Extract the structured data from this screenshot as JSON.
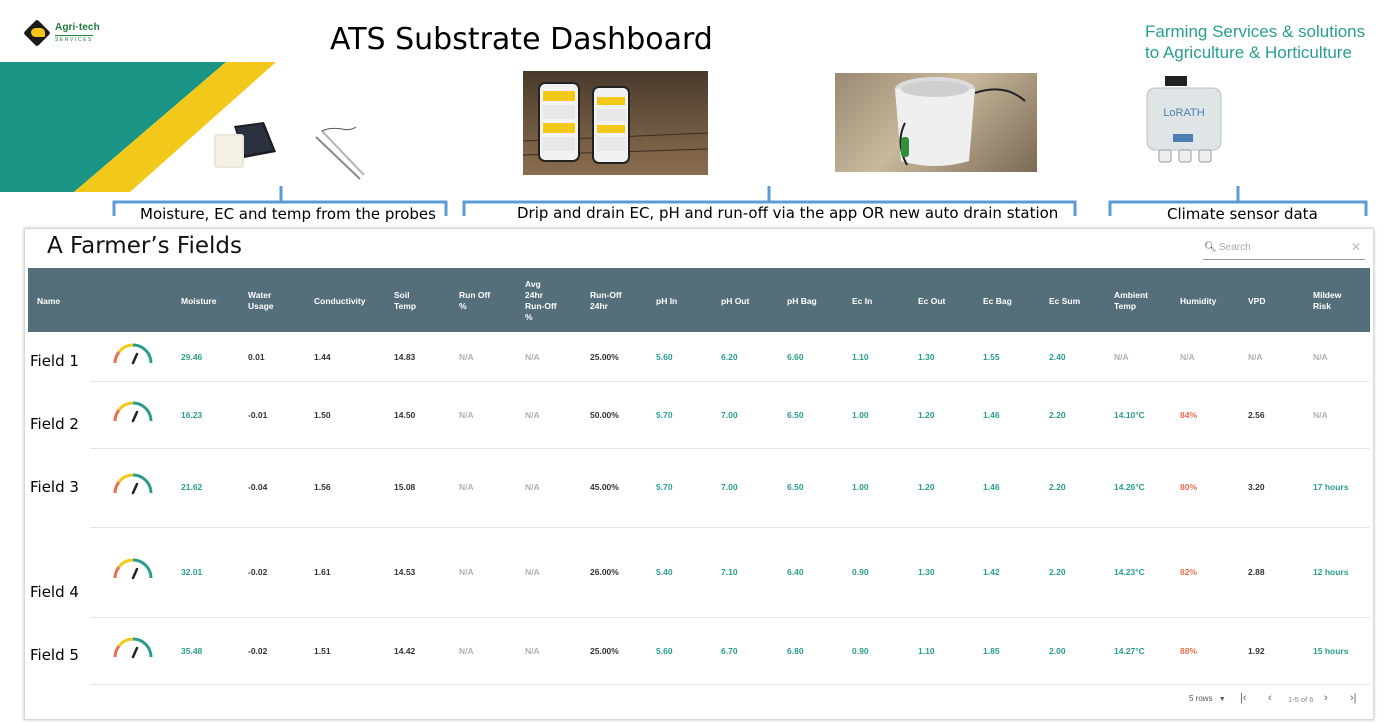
{
  "logo": {
    "name": "Agri·tech",
    "sub": "SERVICES"
  },
  "title": "ATS Substrate Dashboard",
  "tagline": [
    "Farming Services & solutions",
    "to Agriculture & Horticulture"
  ],
  "device_label": "LoRATH",
  "brackets": [
    {
      "label": "Moisture, EC and temp from the probes"
    },
    {
      "label": "Drip and drain EC, pH and run-off via the app OR new auto drain station"
    },
    {
      "label": "Climate sensor data"
    }
  ],
  "table_title": "A Farmer’s Fields",
  "search": {
    "placeholder": "Search",
    "clear_icon": "close-icon"
  },
  "columns": [
    [
      "Name"
    ],
    [
      "Moisture"
    ],
    [
      "Water",
      "Usage"
    ],
    [
      "Conductivity"
    ],
    [
      "Soil",
      "Temp"
    ],
    [
      "Run Off",
      "%"
    ],
    [
      "Avg",
      "24hr",
      "Run-Off",
      "%"
    ],
    [
      "Run-Off",
      "24hr"
    ],
    [
      "pH In"
    ],
    [
      "pH Out"
    ],
    [
      "pH Bag"
    ],
    [
      "Ec In"
    ],
    [
      "Ec Out"
    ],
    [
      "Ec Bag"
    ],
    [
      "Ec Sum"
    ],
    [
      "Ambient",
      "Temp"
    ],
    [
      "Humidity"
    ],
    [
      "VPD"
    ],
    [
      "Mildew",
      "Risk"
    ]
  ],
  "rows": [
    {
      "name": "Field 1",
      "values": [
        "29.46",
        "0.01",
        "1.44",
        "14.83",
        "N/A",
        "N/A",
        "25.00%",
        "5.60",
        "6.20",
        "6.60",
        "1.10",
        "1.30",
        "1.55",
        "2.40",
        "N/A",
        "N/A",
        "N/A",
        "N/A"
      ]
    },
    {
      "name": "Field 2",
      "values": [
        "16.23",
        "-0.01",
        "1.50",
        "14.50",
        "N/A",
        "N/A",
        "50.00%",
        "5.70",
        "7.00",
        "6.50",
        "1.00",
        "1.20",
        "1.46",
        "2.20",
        "14.10°C",
        "84%",
        "2.56",
        "N/A"
      ]
    },
    {
      "name": "Field 3",
      "values": [
        "21.62",
        "-0.04",
        "1.56",
        "15.08",
        "N/A",
        "N/A",
        "45.00%",
        "5.70",
        "7.00",
        "6.50",
        "1.00",
        "1.20",
        "1.46",
        "2.20",
        "14.26°C",
        "80%",
        "3.20",
        "17 hours"
      ]
    },
    {
      "name": "Field 4",
      "values": [
        "32.01",
        "-0.02",
        "1.61",
        "14.53",
        "N/A",
        "N/A",
        "26.00%",
        "5.40",
        "7.10",
        "6.40",
        "0.90",
        "1.30",
        "1.42",
        "2.20",
        "14.23°C",
        "82%",
        "2.88",
        "12 hours"
      ]
    },
    {
      "name": "Field 5",
      "values": [
        "35.48",
        "-0.02",
        "1.51",
        "14.42",
        "N/A",
        "N/A",
        "25.00%",
        "5.60",
        "6.70",
        "6.80",
        "0.90",
        "1.10",
        "1.85",
        "2.00",
        "14.27°C",
        "88%",
        "1.92",
        "15 hours"
      ]
    }
  ],
  "pagination": {
    "rows_per_page": "5 rows",
    "range": "1-5 of 6"
  },
  "colors": {
    "header": "#546e7a",
    "teal": "#2a9d8f",
    "dark": "#333333",
    "na": "#b0b0b0",
    "red": "#e76f51",
    "bracket": "#5b9bd5",
    "banner_teal": "#1a9585",
    "banner_yellow": "#f2c81b"
  }
}
